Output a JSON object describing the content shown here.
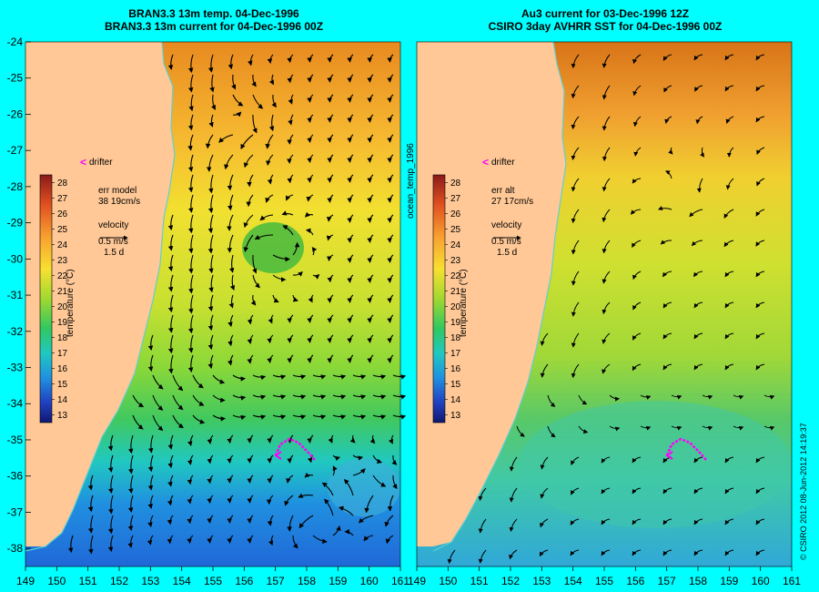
{
  "titles": {
    "left_line1": "BRAN3.3 13m temp. 04-Dec-1996",
    "left_line2": "BRAN3.3 13m current for 04-Dec-1996 00Z",
    "right_line1": "Au3 current for 03-Dec-1996 12Z",
    "right_line2": "CSIRO 3day AVHRR SST for 04-Dec-1996 00Z"
  },
  "axes": {
    "lat_ticks": [
      -24,
      -25,
      -26,
      -27,
      -28,
      -29,
      -30,
      -31,
      -32,
      -33,
      -34,
      -35,
      -36,
      -37,
      -38
    ],
    "lon_ticks": [
      149,
      150,
      151,
      152,
      153,
      154,
      155,
      156,
      157,
      158,
      159,
      160,
      161
    ],
    "lat_range": [
      -38.5,
      -24
    ],
    "lon_range": [
      149,
      161
    ]
  },
  "panels": [
    {
      "name": "left",
      "drifter_label": "drifter",
      "err_line1": "err model",
      "err_line2": "38 19cm/s",
      "velocity_label": "velocity",
      "scale_speed": "0.5 m/s",
      "scale_time": "1.5 d"
    },
    {
      "name": "right",
      "drifter_label": "drifter",
      "err_line1": "err alt",
      "err_line2": "27 17cm/s",
      "velocity_label": "velocity",
      "scale_speed": "0.5 m/s",
      "scale_time": "1.5 d"
    }
  ],
  "colorbar": {
    "label": "temperature (°C)",
    "ticks": [
      "28",
      "27",
      "26",
      "25",
      "24",
      "23",
      "22",
      "21",
      "20",
      "19",
      "18",
      "17",
      "16",
      "15",
      "14",
      "13"
    ]
  },
  "side_label": "ocean_temp_1996",
  "credit": "© CSIRO 2012  08-Jun-2012 14:19:37",
  "colors": {
    "background": "#00ffff",
    "land": "#ffc896",
    "drifter": "#ff00ff",
    "coastline": "#5fd0d0"
  }
}
